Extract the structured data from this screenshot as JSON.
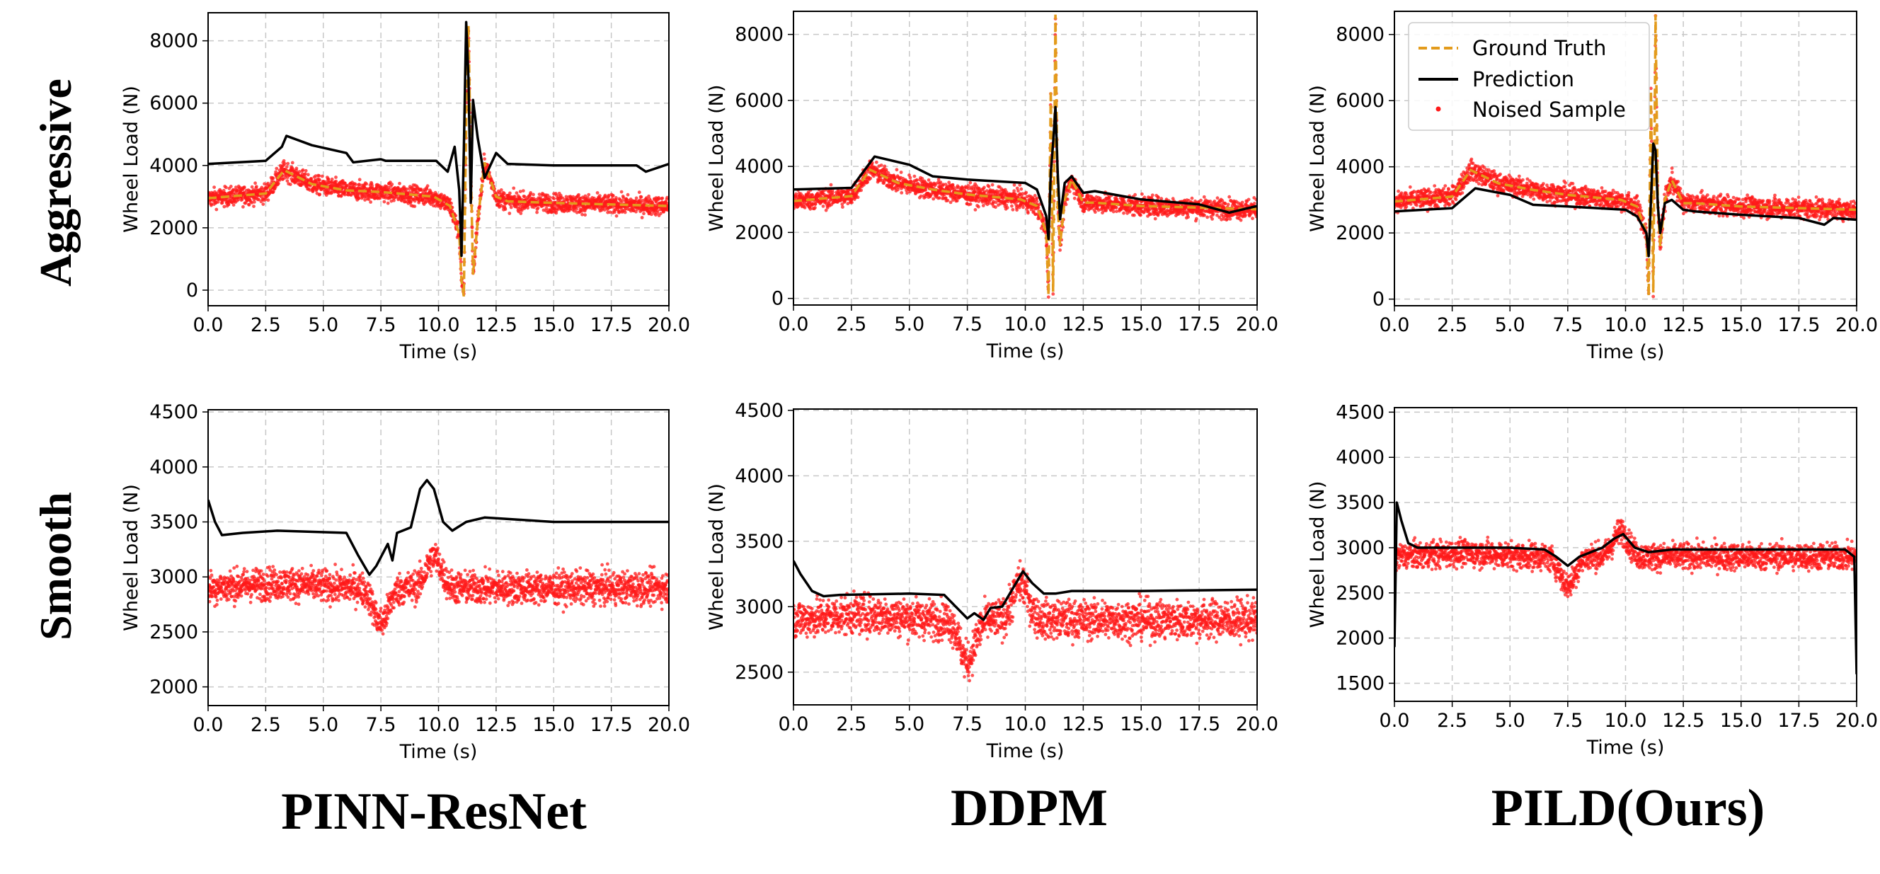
{
  "figure": {
    "row_labels": [
      "Aggressive",
      "Smooth"
    ],
    "column_labels": [
      "PINN-ResNet",
      "DDPM",
      "PILD(Ours)"
    ],
    "legend": {
      "ground_truth": "Ground Truth",
      "prediction": "Prediction",
      "noised_sample": "Noised Sample"
    },
    "colors": {
      "ground_truth": "#E39B1C",
      "prediction": "#000000",
      "noised_sample": "#FF1A1A",
      "grid": "#c8c8c8"
    }
  },
  "chart_data": [
    {
      "type": "line",
      "row": "Aggressive",
      "column": "PINN-ResNet",
      "xlabel": "Time (s)",
      "ylabel": "Wheel Load (N)",
      "xlim": [
        0,
        20
      ],
      "ylim": [
        -500,
        8900
      ],
      "xticks": [
        "0.0",
        "2.5",
        "5.0",
        "7.5",
        "10.0",
        "12.5",
        "15.0",
        "17.5",
        "20.0"
      ],
      "yticks": [
        "0",
        "2000",
        "4000",
        "6000",
        "8000"
      ],
      "series": [
        {
          "name": "Ground Truth",
          "style": "dashed",
          "x": [
            0,
            2.5,
            3.3,
            4.5,
            6,
            7.5,
            9.8,
            10.5,
            10.9,
            11.0,
            11.1,
            11.2,
            11.3,
            11.4,
            11.5,
            11.7,
            12.0,
            12.5,
            13,
            15,
            17.5,
            20
          ],
          "y": [
            2950,
            3100,
            3850,
            3400,
            3200,
            3150,
            3000,
            2700,
            1800,
            300,
            -200,
            5500,
            8500,
            4000,
            500,
            2200,
            4100,
            3000,
            2850,
            2800,
            2750,
            2700
          ]
        },
        {
          "name": "Prediction",
          "style": "solid",
          "x": [
            0,
            2.5,
            3.2,
            3.4,
            4.5,
            6.0,
            6.3,
            7.5,
            7.7,
            9.9,
            10.4,
            10.7,
            10.9,
            11.0,
            11.1,
            11.2,
            11.3,
            11.4,
            11.5,
            11.7,
            12.0,
            12.5,
            13,
            15,
            17.5,
            18.6,
            19.0,
            20
          ],
          "y": [
            4050,
            4150,
            4600,
            4950,
            4650,
            4400,
            4100,
            4200,
            4150,
            4150,
            3800,
            4600,
            3200,
            1100,
            4500,
            8600,
            6800,
            2800,
            6100,
            4900,
            3600,
            4400,
            4050,
            4000,
            4000,
            4000,
            3800,
            4050
          ]
        },
        {
          "name": "Noised Sample",
          "style": "scatter",
          "center": 3000,
          "spread": 300
        }
      ]
    },
    {
      "type": "line",
      "row": "Aggressive",
      "column": "DDPM",
      "xlabel": "Time (s)",
      "ylabel": "Wheel Load (N)",
      "xlim": [
        0,
        20
      ],
      "ylim": [
        -200,
        8700
      ],
      "xticks": [
        "0.0",
        "2.5",
        "5.0",
        "7.5",
        "10.0",
        "12.5",
        "15.0",
        "17.5",
        "20.0"
      ],
      "yticks": [
        "0",
        "2000",
        "4000",
        "6000",
        "8000"
      ],
      "series": [
        {
          "name": "Ground Truth",
          "style": "dashed",
          "x": [
            0,
            2.5,
            3.3,
            4.5,
            6,
            7.5,
            9.8,
            10.5,
            10.9,
            11.0,
            11.1,
            11.2,
            11.3,
            11.4,
            11.5,
            11.7,
            12.0,
            12.5,
            13,
            15,
            17.5,
            20
          ],
          "y": [
            2950,
            3100,
            3900,
            3500,
            3300,
            3150,
            3000,
            2800,
            2000,
            100,
            6300,
            200,
            8600,
            2800,
            1600,
            3000,
            3600,
            2900,
            2900,
            2800,
            2750,
            2700
          ]
        },
        {
          "name": "Prediction",
          "style": "solid",
          "x": [
            0,
            2.5,
            3.5,
            5.0,
            6.0,
            7.5,
            10.0,
            10.5,
            10.9,
            11.0,
            11.1,
            11.2,
            11.3,
            11.4,
            11.5,
            11.7,
            12.0,
            12.5,
            13,
            15,
            17.5,
            18.8,
            20
          ],
          "y": [
            3300,
            3350,
            4300,
            4050,
            3700,
            3600,
            3500,
            3300,
            2500,
            1800,
            3800,
            4700,
            5800,
            3800,
            2400,
            3500,
            3700,
            3200,
            3250,
            3000,
            2850,
            2600,
            2800
          ]
        },
        {
          "name": "Noised Sample",
          "style": "scatter",
          "center": 3000,
          "spread": 300
        }
      ]
    },
    {
      "type": "line",
      "row": "Aggressive",
      "column": "PILD(Ours)",
      "xlabel": "Time (s)",
      "ylabel": "Wheel Load (N)",
      "xlim": [
        0,
        20
      ],
      "ylim": [
        -200,
        8700
      ],
      "xticks": [
        "0.0",
        "2.5",
        "5.0",
        "7.5",
        "10.0",
        "12.5",
        "15.0",
        "17.5",
        "20.0"
      ],
      "yticks": [
        "0",
        "2000",
        "4000",
        "6000",
        "8000"
      ],
      "series": [
        {
          "name": "Ground Truth",
          "style": "dashed",
          "x": [
            0,
            2.5,
            3.3,
            4.5,
            6,
            7.5,
            9.8,
            10.5,
            10.9,
            11.0,
            11.1,
            11.2,
            11.3,
            11.4,
            11.5,
            11.7,
            12.0,
            12.5,
            13,
            15,
            17.5,
            20
          ],
          "y": [
            2950,
            3100,
            3900,
            3500,
            3300,
            3150,
            3000,
            2800,
            2000,
            100,
            6300,
            200,
            8600,
            2800,
            1600,
            3000,
            3600,
            2900,
            2900,
            2800,
            2750,
            2700
          ]
        },
        {
          "name": "Prediction",
          "style": "solid",
          "x": [
            0,
            2.5,
            3.5,
            5.0,
            6.0,
            7.5,
            10.0,
            10.5,
            10.9,
            11.0,
            11.1,
            11.2,
            11.3,
            11.4,
            11.5,
            11.7,
            12.0,
            12.5,
            13,
            15,
            17.5,
            18.6,
            19.0,
            20
          ],
          "y": [
            2650,
            2750,
            3350,
            3150,
            2850,
            2800,
            2700,
            2500,
            2000,
            1300,
            3000,
            4700,
            4500,
            2800,
            2000,
            2900,
            3000,
            2700,
            2650,
            2550,
            2450,
            2250,
            2450,
            2400
          ]
        },
        {
          "name": "Noised Sample",
          "style": "scatter",
          "center": 3000,
          "spread": 300
        }
      ]
    },
    {
      "type": "line",
      "row": "Smooth",
      "column": "PINN-ResNet",
      "xlabel": "Time (s)",
      "ylabel": "Wheel Load (N)",
      "xlim": [
        0,
        20
      ],
      "ylim": [
        1830,
        4520
      ],
      "xticks": [
        "0.0",
        "2.5",
        "5.0",
        "7.5",
        "10.0",
        "12.5",
        "15.0",
        "17.5",
        "20.0"
      ],
      "yticks": [
        "2000",
        "2500",
        "3000",
        "3500",
        "4000",
        "4500"
      ],
      "series": [
        {
          "name": "Prediction",
          "style": "solid",
          "x": [
            0,
            0.3,
            0.6,
            1.5,
            3,
            6.0,
            6.5,
            7.0,
            7.3,
            7.8,
            8.0,
            8.2,
            8.8,
            9.2,
            9.5,
            9.8,
            10.2,
            10.6,
            11.2,
            12,
            15,
            20
          ],
          "y": [
            3700,
            3500,
            3380,
            3400,
            3420,
            3400,
            3200,
            3020,
            3100,
            3300,
            3150,
            3400,
            3450,
            3800,
            3880,
            3800,
            3500,
            3420,
            3500,
            3540,
            3500,
            3500
          ]
        },
        {
          "name": "Noised Sample",
          "style": "scatter",
          "center": 2900,
          "spread": 150
        }
      ]
    },
    {
      "type": "line",
      "row": "Smooth",
      "column": "DDPM",
      "xlabel": "Time (s)",
      "ylabel": "Wheel Load (N)",
      "xlim": [
        0,
        20
      ],
      "ylim": [
        2250,
        4510
      ],
      "xticks": [
        "0.0",
        "2.5",
        "5.0",
        "7.5",
        "10.0",
        "12.5",
        "15.0",
        "17.5",
        "20.0"
      ],
      "yticks": [
        "2500",
        "3000",
        "3500",
        "4000",
        "4500"
      ],
      "series": [
        {
          "name": "Prediction",
          "style": "solid",
          "x": [
            0,
            0.3,
            0.8,
            1.3,
            2,
            5,
            6.5,
            7.0,
            7.5,
            7.8,
            8.2,
            8.5,
            9.0,
            9.5,
            9.9,
            10.3,
            10.8,
            11.3,
            12,
            15,
            20
          ],
          "y": [
            3350,
            3250,
            3120,
            3080,
            3090,
            3100,
            3090,
            3000,
            2910,
            2950,
            2900,
            2990,
            3000,
            3150,
            3270,
            3180,
            3100,
            3100,
            3120,
            3120,
            3130
          ]
        },
        {
          "name": "Noised Sample",
          "style": "scatter",
          "center": 2900,
          "spread": 150
        }
      ]
    },
    {
      "type": "line",
      "row": "Smooth",
      "column": "PILD(Ours)",
      "xlabel": "Time (s)",
      "ylabel": "Wheel Load (N)",
      "xlim": [
        0,
        20
      ],
      "ylim": [
        1300,
        4550
      ],
      "xticks": [
        "0.0",
        "2.5",
        "5.0",
        "7.5",
        "10.0",
        "12.5",
        "15.0",
        "17.5",
        "20.0"
      ],
      "yticks": [
        "1500",
        "2000",
        "2500",
        "3000",
        "3500",
        "4000",
        "4500"
      ],
      "series": [
        {
          "name": "Prediction",
          "style": "solid",
          "x": [
            0,
            0.1,
            0.3,
            0.6,
            1.0,
            2,
            5,
            6.5,
            7.0,
            7.5,
            8.0,
            8.5,
            9.0,
            9.5,
            9.9,
            10.4,
            11,
            12,
            15,
            19.5,
            19.9,
            20
          ],
          "y": [
            1900,
            3500,
            3300,
            3050,
            3000,
            3000,
            3000,
            2980,
            2900,
            2800,
            2900,
            2950,
            3000,
            3100,
            3150,
            3000,
            2950,
            2980,
            2980,
            2980,
            2900,
            1600
          ]
        },
        {
          "name": "Noised Sample",
          "style": "scatter",
          "center": 2900,
          "spread": 150
        }
      ]
    }
  ]
}
